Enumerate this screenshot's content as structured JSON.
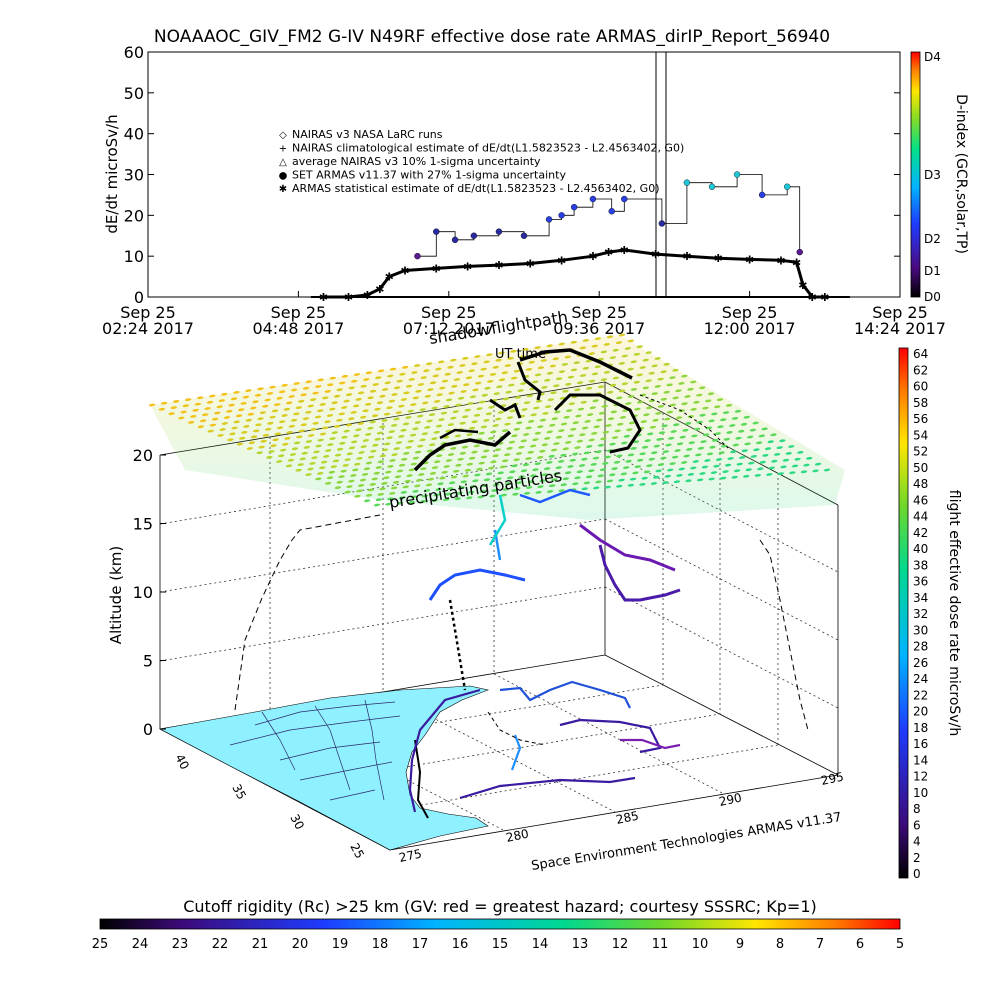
{
  "title": "NOAAAOC_GIV_FM2 G-IV    N49RF   effective dose rate ARMAS_dirIP_Report_56940",
  "top_panel": {
    "ylabel": "dE/dt microSv/h",
    "y_ticks": [
      "0",
      "10",
      "20",
      "30",
      "40",
      "50",
      "60"
    ],
    "x_ticks": [
      [
        "Sep 25",
        "02:24 2017"
      ],
      [
        "Sep 25",
        "04:48 2017"
      ],
      [
        "Sep 25",
        "07:12 2017"
      ],
      [
        "Sep 25",
        "09:36 2017"
      ],
      [
        "Sep 25",
        "12:00 2017"
      ],
      [
        "Sep 25",
        "14:24 2017"
      ]
    ],
    "legend": [
      {
        "marker": "◇",
        "text": "NAIRAS v3 NASA LaRC runs"
      },
      {
        "marker": "+",
        "text": "NAIRAS climatological estimate of dE/dt(L1.5823523 - L2.4563402, G0)"
      },
      {
        "marker": "△",
        "text": "average NAIRAS v3 10% 1-sigma uncertainty"
      },
      {
        "marker": "●",
        "text": "SET ARMAS v11.37 with 27% 1-sigma uncertainty"
      },
      {
        "marker": "✱",
        "text": "ARMAS statistical estimate of dE/dt(L1.5823523 - L2.4563402, G0)"
      }
    ],
    "dindex_label": "D-index (GCR,solar,TP)",
    "dindex_ticks": [
      "D4",
      "D3",
      "D2",
      "D1",
      "D0"
    ]
  },
  "chart_data": [
    {
      "type": "line",
      "title": "NOAAAOC_GIV_FM2 G-IV    N49RF   effective dose rate ARMAS_dirIP_Report_56940",
      "xlabel": "",
      "ylabel": "dE/dt microSv/h",
      "x_unit": "hours UT, Sep 25 2017",
      "xlim": [
        2.4,
        14.4
      ],
      "ylim": [
        0,
        60
      ],
      "series": [
        {
          "name": "ARMAS statistical estimate of dE/dt(L1.5823523 - L2.4563402, G0)",
          "x": [
            5.2,
            5.6,
            5.9,
            6.1,
            6.25,
            6.5,
            7.0,
            7.5,
            8.0,
            8.5,
            9.0,
            9.5,
            9.75,
            10.0,
            10.5,
            11.0,
            11.5,
            12.0,
            12.5,
            12.75,
            12.85,
            13.0,
            13.2
          ],
          "values": [
            0,
            0,
            0.5,
            2,
            5,
            6.5,
            7,
            7.5,
            7.8,
            8.2,
            9,
            10,
            11,
            11.5,
            10.5,
            10,
            9.5,
            9.2,
            9,
            8.5,
            3,
            0,
            0
          ]
        },
        {
          "name": "SET ARMAS v11.37 with 27% 1-sigma uncertainty",
          "x": [
            6.7,
            7.0,
            7.3,
            7.6,
            8.0,
            8.4,
            8.8,
            9.0,
            9.2,
            9.5,
            9.8,
            10.0,
            10.6,
            11.0,
            11.4,
            11.8,
            12.2,
            12.6,
            12.8
          ],
          "values": [
            10,
            16,
            14,
            15,
            16,
            15,
            19,
            20,
            22,
            24,
            21,
            24,
            18,
            28,
            27,
            30,
            25,
            27,
            11
          ]
        }
      ]
    },
    {
      "type": "scatter",
      "title": "",
      "xlabel": "",
      "ylabel": "Altitude (km)",
      "zlim": [
        0,
        20
      ],
      "series": [
        {
          "name": "",
          "lat": [
            27,
            30,
            32,
            34,
            35,
            33,
            30,
            28,
            26
          ],
          "lon": [
            277,
            279,
            281,
            283,
            283,
            281,
            279,
            278,
            277
          ],
          "alt": [
            0,
            6,
            11,
            13,
            13,
            12,
            11,
            9,
            0
          ]
        }
      ]
    }
  ],
  "map_panel": {
    "annotations": [
      "shadow",
      "flightpath",
      "UT time",
      "precipitating particles"
    ],
    "z_label": "Altitude (km)",
    "z_ticks": [
      "0",
      "5",
      "10",
      "15",
      "20"
    ],
    "lat_ticks": [
      "40",
      "35",
      "30",
      "25"
    ],
    "lon_ticks": [
      "275",
      "280",
      "285",
      "290",
      "295"
    ],
    "credit": "Space Environment Technologies ARMAS v11.37"
  },
  "dose_colorbar": {
    "label": "flight effective dose rate microSv/h",
    "ticks": [
      "64",
      "62",
      "60",
      "58",
      "56",
      "54",
      "52",
      "50",
      "48",
      "46",
      "44",
      "42",
      "40",
      "38",
      "36",
      "34",
      "32",
      "30",
      "28",
      "26",
      "24",
      "22",
      "20",
      "18",
      "16",
      "14",
      "12",
      "10",
      "8",
      "6",
      "4",
      "2",
      "0"
    ]
  },
  "rigidity_colorbar": {
    "label": "Cutoff rigidity (Rc) >25 km (GV: red = greatest hazard; courtesy SSSRC; Kp=1)",
    "ticks": [
      "25",
      "24",
      "23",
      "22",
      "21",
      "20",
      "19",
      "18",
      "17",
      "16",
      "15",
      "14",
      "13",
      "12",
      "11",
      "10",
      "9",
      "8",
      "7",
      "6",
      "5"
    ]
  }
}
